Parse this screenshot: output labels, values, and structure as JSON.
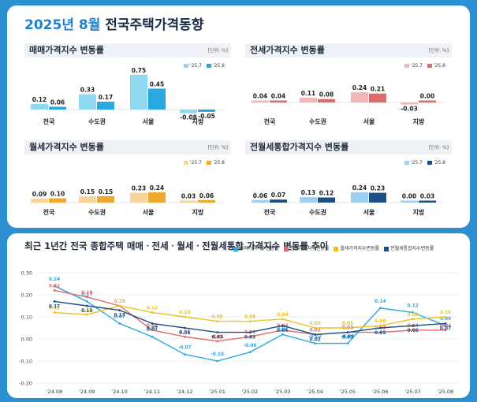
{
  "header": {
    "title_year": "2025년 8월",
    "title_rest": " 전국주택가격동향"
  },
  "colors": {
    "sale_prev": "#8fd8f0",
    "sale_cur": "#29a8e0",
    "jeonse_prev": "#f3b6b6",
    "jeonse_cur": "#e06a6a",
    "monthly_prev": "#f7d49a",
    "monthly_cur": "#f0a830",
    "integrated_prev": "#9dd0ef",
    "integrated_cur": "#1b4f86"
  },
  "panels": [
    {
      "title": "매매가격지수 변동률",
      "unit": "[단위: %]",
      "legend": [
        "'25.7",
        "'25.8"
      ]
    },
    {
      "title": "전세가격지수 변동률",
      "unit": "[단위: %]",
      "legend": [
        "'25.7",
        "'25.8"
      ]
    },
    {
      "title": "월세가격지수 변동률",
      "unit": "[단위: %]",
      "legend": [
        "'25.7",
        "'25.8"
      ]
    },
    {
      "title": "전월세통합가격지수 변동률",
      "unit": "[단위: %]",
      "legend": [
        "'25.7",
        "'25.8"
      ]
    }
  ],
  "line_chart": {
    "title": "최근 1년간 전국 종합주택 매매ㆍ전세ㆍ월세ㆍ전월세통합 가격지수 변동률 추이"
  },
  "chart_data": [
    {
      "type": "bar",
      "title": "매매가격지수 변동률",
      "categories": [
        "전국",
        "수도권",
        "서울",
        "지방"
      ],
      "series": [
        {
          "name": "'25.7",
          "values": [
            0.12,
            0.33,
            0.75,
            -0.08
          ]
        },
        {
          "name": "'25.8",
          "values": [
            0.06,
            0.17,
            0.45,
            -0.05
          ]
        }
      ]
    },
    {
      "type": "bar",
      "title": "전세가격지수 변동률",
      "categories": [
        "전국",
        "수도권",
        "서울",
        "지방"
      ],
      "series": [
        {
          "name": "'25.7",
          "values": [
            0.04,
            0.11,
            0.24,
            -0.03
          ]
        },
        {
          "name": "'25.8",
          "values": [
            0.04,
            0.08,
            0.21,
            0.0
          ]
        }
      ]
    },
    {
      "type": "bar",
      "title": "월세가격지수 변동률",
      "categories": [
        "전국",
        "수도권",
        "서울",
        "지방"
      ],
      "series": [
        {
          "name": "'25.7",
          "values": [
            0.09,
            0.15,
            0.23,
            0.03
          ]
        },
        {
          "name": "'25.8",
          "values": [
            0.1,
            0.15,
            0.24,
            0.06
          ]
        }
      ]
    },
    {
      "type": "bar",
      "title": "전월세통합가격지수 변동률",
      "categories": [
        "전국",
        "수도권",
        "서울",
        "지방"
      ],
      "series": [
        {
          "name": "'25.7",
          "values": [
            0.06,
            0.13,
            0.24,
            0.0
          ]
        },
        {
          "name": "'25.8",
          "values": [
            0.07,
            0.12,
            0.23,
            0.03
          ]
        }
      ]
    },
    {
      "type": "line",
      "title": "최근 1년간 전국 종합주택 매매ㆍ전세ㆍ월세ㆍ전월세통합 가격지수 변동률 추이",
      "x": [
        "'24.08",
        "'24.09",
        "'24.10",
        "'24.11",
        "'24.12",
        "'25.01",
        "'25.02",
        "'25.03",
        "'25.04",
        "'25.05",
        "'25.06",
        "'25.07",
        "'25.08"
      ],
      "yticks": [
        "0.30",
        "0.20",
        "0.10",
        "0.00",
        "-0.10",
        "-0.20"
      ],
      "ylim": [
        -0.2,
        0.3
      ],
      "series": [
        {
          "name": "매매가격지수변동률",
          "color": "#29a8e0",
          "values": [
            0.24,
            0.17,
            0.07,
            0.01,
            -0.07,
            -0.1,
            -0.06,
            0.02,
            -0.02,
            -0.02,
            0.14,
            0.12,
            0.06
          ]
        },
        {
          "name": "전세가격지수변동률",
          "color": "#e06a6a",
          "values": [
            0.22,
            0.19,
            0.15,
            0.04,
            0.01,
            -0.01,
            0.01,
            0.04,
            0.02,
            0.03,
            0.03,
            0.04,
            0.04
          ]
        },
        {
          "name": "월세가격지수변동률",
          "color": "#f0c020",
          "values": [
            0.12,
            0.11,
            0.15,
            0.12,
            0.1,
            0.08,
            0.08,
            0.09,
            0.05,
            0.05,
            0.06,
            0.09,
            0.1
          ]
        },
        {
          "name": "전월세통합지수변동률",
          "color": "#1b4f86",
          "values": [
            0.17,
            0.15,
            0.13,
            0.07,
            0.05,
            0.03,
            0.03,
            0.06,
            0.02,
            0.03,
            0.05,
            0.06,
            0.07
          ]
        }
      ]
    }
  ]
}
